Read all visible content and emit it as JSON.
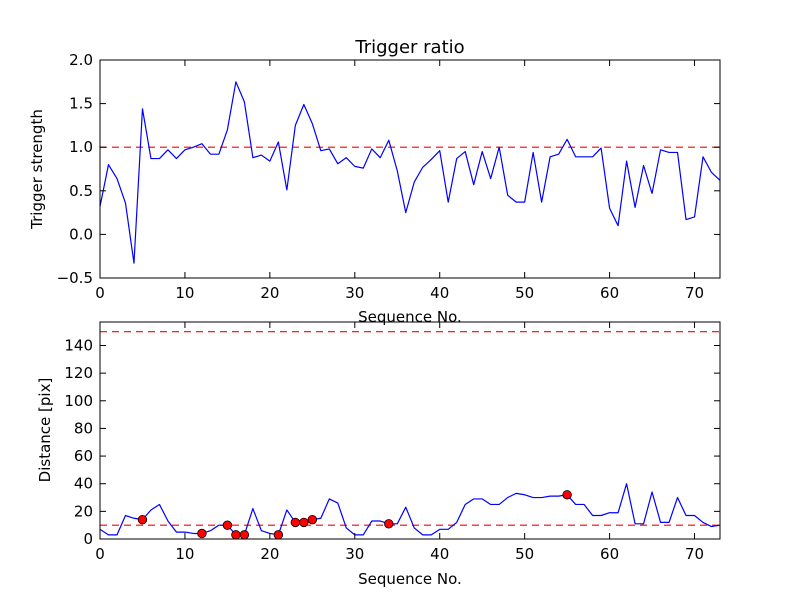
{
  "chart_data": [
    {
      "type": "line",
      "title": "Trigger ratio",
      "xlabel": "Sequence No.",
      "ylabel": "Trigger strength",
      "xlim": [
        0,
        73
      ],
      "ylim": [
        -0.5,
        2.0
      ],
      "xticks": [
        "0",
        "10",
        "20",
        "30",
        "40",
        "50",
        "60",
        "70"
      ],
      "yticks": [
        "−0.5",
        "0.0",
        "0.5",
        "1.0",
        "1.5",
        "2.0"
      ],
      "threshold": 1.0,
      "grid": false,
      "series": [
        {
          "name": "trigger strength",
          "color": "#0000ff",
          "x": [
            0,
            1,
            2,
            3,
            4,
            5,
            6,
            7,
            8,
            9,
            10,
            11,
            12,
            13,
            14,
            15,
            16,
            17,
            18,
            19,
            20,
            21,
            22,
            23,
            24,
            25,
            26,
            27,
            28,
            29,
            30,
            31,
            32,
            33,
            34,
            35,
            36,
            37,
            38,
            39,
            40,
            41,
            42,
            43,
            44,
            45,
            46,
            47,
            48,
            49,
            50,
            51,
            52,
            53,
            54,
            55,
            56,
            57,
            58,
            59,
            60,
            61,
            62,
            63,
            64,
            65,
            66,
            67,
            68,
            69,
            70,
            71,
            72,
            73
          ],
          "values": [
            0.32,
            0.8,
            0.64,
            0.36,
            -0.33,
            1.44,
            0.87,
            0.87,
            0.97,
            0.87,
            0.97,
            1.0,
            1.04,
            0.92,
            0.92,
            1.2,
            1.75,
            1.52,
            0.88,
            0.91,
            0.84,
            1.06,
            0.51,
            1.25,
            1.49,
            1.27,
            0.96,
            0.98,
            0.81,
            0.88,
            0.78,
            0.76,
            0.98,
            0.88,
            1.08,
            0.73,
            0.25,
            0.6,
            0.77,
            0.86,
            0.96,
            0.37,
            0.87,
            0.95,
            0.57,
            0.95,
            0.64,
            1.0,
            0.45,
            0.37,
            0.37,
            0.94,
            0.37,
            0.89,
            0.92,
            1.09,
            0.89,
            0.89,
            0.89,
            0.99,
            0.3,
            0.1,
            0.84,
            0.31,
            0.79,
            0.47,
            0.97,
            0.94,
            0.94,
            0.17,
            0.2,
            0.89,
            0.71,
            0.62
          ]
        }
      ],
      "threshold_color": "#ff0000"
    },
    {
      "type": "line",
      "title": "",
      "xlabel": "Sequence No.",
      "ylabel": "Distance [pix]",
      "xlim": [
        0,
        73
      ],
      "ylim": [
        0,
        157
      ],
      "xticks": [
        "0",
        "10",
        "20",
        "30",
        "40",
        "50",
        "60",
        "70"
      ],
      "yticks": [
        "0",
        "20",
        "40",
        "60",
        "80",
        "100",
        "120",
        "140"
      ],
      "thresholds": [
        10,
        150
      ],
      "grid": false,
      "series": [
        {
          "name": "distance",
          "color": "#0000ff",
          "x": [
            0,
            1,
            2,
            3,
            4,
            5,
            6,
            7,
            8,
            9,
            10,
            11,
            12,
            13,
            14,
            15,
            16,
            17,
            18,
            19,
            20,
            21,
            22,
            23,
            24,
            25,
            26,
            27,
            28,
            29,
            30,
            31,
            32,
            33,
            34,
            35,
            36,
            37,
            38,
            39,
            40,
            41,
            42,
            43,
            44,
            45,
            46,
            47,
            48,
            49,
            50,
            51,
            52,
            53,
            54,
            55,
            56,
            57,
            58,
            59,
            60,
            61,
            62,
            63,
            64,
            65,
            66,
            67,
            68,
            69,
            70,
            71,
            72,
            73
          ],
          "values": [
            7,
            3,
            3,
            17,
            15,
            14,
            21,
            25,
            13,
            5,
            5,
            4,
            4,
            6,
            10,
            10,
            3,
            3,
            22,
            6,
            4,
            3,
            21,
            12,
            12,
            14,
            15,
            29,
            26,
            8,
            3,
            3,
            13,
            13,
            11,
            11,
            23,
            8,
            3,
            3,
            7,
            7,
            12,
            25,
            29,
            29,
            25,
            25,
            30,
            33,
            32,
            30,
            30,
            31,
            31,
            32,
            25,
            25,
            17,
            17,
            19,
            19,
            40,
            11,
            11,
            34,
            12,
            12,
            30,
            17,
            17,
            12,
            9,
            10
          ]
        },
        {
          "name": "triggered points",
          "type": "scatter",
          "color": "#ff0000",
          "x": [
            5,
            12,
            15,
            16,
            17,
            21,
            23,
            24,
            25,
            34,
            55
          ],
          "values": [
            14,
            4,
            10,
            3,
            3,
            3,
            12,
            12,
            14,
            11,
            32
          ]
        }
      ],
      "threshold_color": "#ff0000"
    }
  ]
}
